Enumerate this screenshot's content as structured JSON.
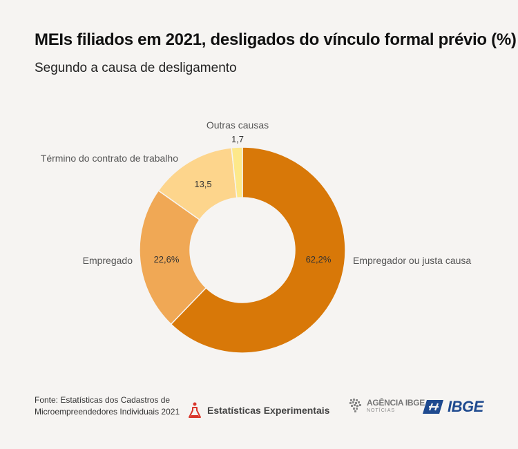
{
  "header": {
    "title": "MEIs filiados em 2021, desligados do vínculo formal prévio (%)",
    "subtitle": "Segundo a causa de desligamento"
  },
  "chart_data": {
    "type": "pie",
    "donut": true,
    "categories": [
      "Empregador ou justa causa",
      "Empregado",
      "Término do contrato de trabalho",
      "Outras causas"
    ],
    "values": [
      62.2,
      22.6,
      13.5,
      1.7
    ],
    "value_labels": [
      "62,2%",
      "22,6%",
      "13,5",
      "1,7"
    ],
    "colors": [
      "#d87808",
      "#f0a855",
      "#fdd58c",
      "#fde88a"
    ],
    "title": "MEIs filiados em 2021, desligados do vínculo formal prévio (%)",
    "subtitle": "Segundo a causa de desligamento"
  },
  "footer": {
    "source": "Fonte: Estatísticas dos Cadastros de Microempreendedores Individuais 2021",
    "experimental_label": "Estatísticas Experimentais",
    "agencia_brand": "AGÊNCIA IBGE",
    "agencia_sub": "NOTÍCIAS",
    "ibge_logo": "IBGE"
  },
  "icons": {
    "experimental": "flask-icon",
    "agencia": "brazil-map-icon",
    "ibge": "ibge-logo-icon"
  }
}
